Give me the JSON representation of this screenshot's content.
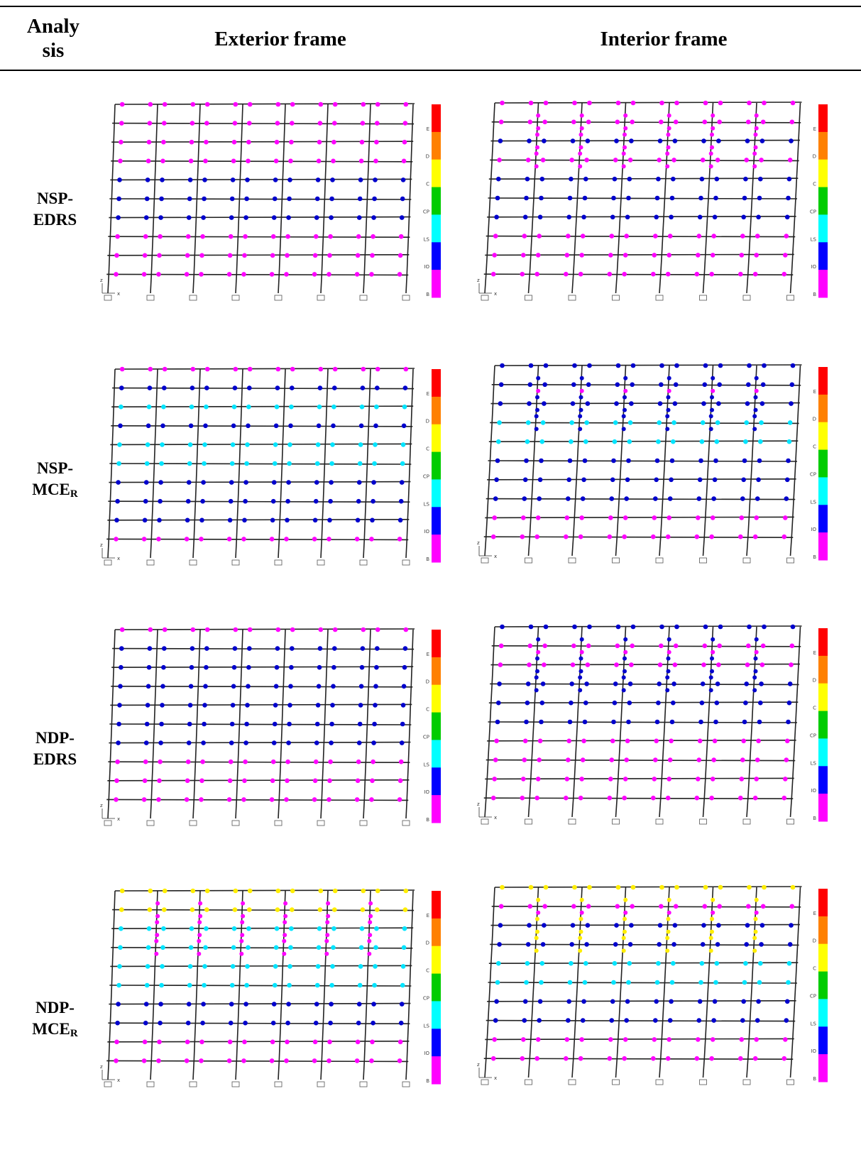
{
  "header": {
    "col_analysis_line1": "Analy",
    "col_analysis_line2": "sis",
    "col_exterior": "Exterior frame",
    "col_interior": "Interior frame"
  },
  "legend": {
    "labels": [
      "E",
      "D",
      "C",
      "CP",
      "LS",
      "IO",
      "B"
    ],
    "colors": [
      "#ff0000",
      "#ff8000",
      "#ffff00",
      "#00cc00",
      "#00ffff",
      "#0000ff",
      "#ff00ff"
    ]
  },
  "hinge_state_colors": {
    "B": "#ff00ff",
    "IO": "#0000cc",
    "LS": "#00e5ff",
    "CP": "#22cc00",
    "C": "#ffee00"
  },
  "axis": {
    "x": "x",
    "z": "z"
  },
  "rows": [
    {
      "label_line1": "NSP-",
      "label_line2": "EDRS",
      "label_sub": ""
    },
    {
      "label_line1": "NSP-",
      "label_line2": "MCE",
      "label_sub": "R"
    },
    {
      "label_line1": "NDP-",
      "label_line2": "EDRS",
      "label_sub": ""
    },
    {
      "label_line1": "NDP-",
      "label_line2": "MCE",
      "label_sub": "R"
    }
  ],
  "frames": [
    {
      "row": 0,
      "side": "exterior",
      "beam_hinges_by_story": [
        "B",
        "B",
        "B",
        "IO",
        "IO",
        "IO",
        "B",
        "B",
        "B",
        "B"
      ],
      "column_hinges": false
    },
    {
      "row": 0,
      "side": "interior",
      "beam_hinges_by_story": [
        "B",
        "B",
        "B",
        "IO",
        "IO",
        "IO",
        "B",
        "IO",
        "B",
        "B"
      ],
      "column_hinges": true,
      "column_hinge_state": "B"
    },
    {
      "row": 1,
      "side": "exterior",
      "beam_hinges_by_story": [
        "B",
        "IO",
        "IO",
        "IO",
        "LS",
        "LS",
        "IO",
        "LS",
        "IO",
        "B"
      ],
      "column_hinges": false
    },
    {
      "row": 1,
      "side": "interior",
      "beam_hinges_by_story": [
        "B",
        "B",
        "IO",
        "IO",
        "IO",
        "LS",
        "LS",
        "IO",
        "IO",
        "IO"
      ],
      "column_hinges": true,
      "column_hinge_state": "IO"
    },
    {
      "row": 2,
      "side": "exterior",
      "beam_hinges_by_story": [
        "B",
        "B",
        "B",
        "IO",
        "IO",
        "IO",
        "IO",
        "IO",
        "IO",
        "B"
      ],
      "column_hinges": false
    },
    {
      "row": 2,
      "side": "interior",
      "beam_hinges_by_story": [
        "B",
        "B",
        "B",
        "B",
        "IO",
        "IO",
        "IO",
        "B",
        "B",
        "IO"
      ],
      "column_hinges": true,
      "column_hinge_state": "IO"
    },
    {
      "row": 3,
      "side": "exterior",
      "beam_hinges_by_story": [
        "B",
        "B",
        "IO",
        "IO",
        "LS",
        "LS",
        "LS",
        "LS",
        "C",
        "C"
      ],
      "column_hinges": true,
      "column_hinge_state": "B"
    },
    {
      "row": 3,
      "side": "interior",
      "beam_hinges_by_story": [
        "B",
        "B",
        "IO",
        "IO",
        "LS",
        "LS",
        "IO",
        "IO",
        "B",
        "C"
      ],
      "column_hinges": true,
      "column_hinge_state": "C"
    }
  ]
}
